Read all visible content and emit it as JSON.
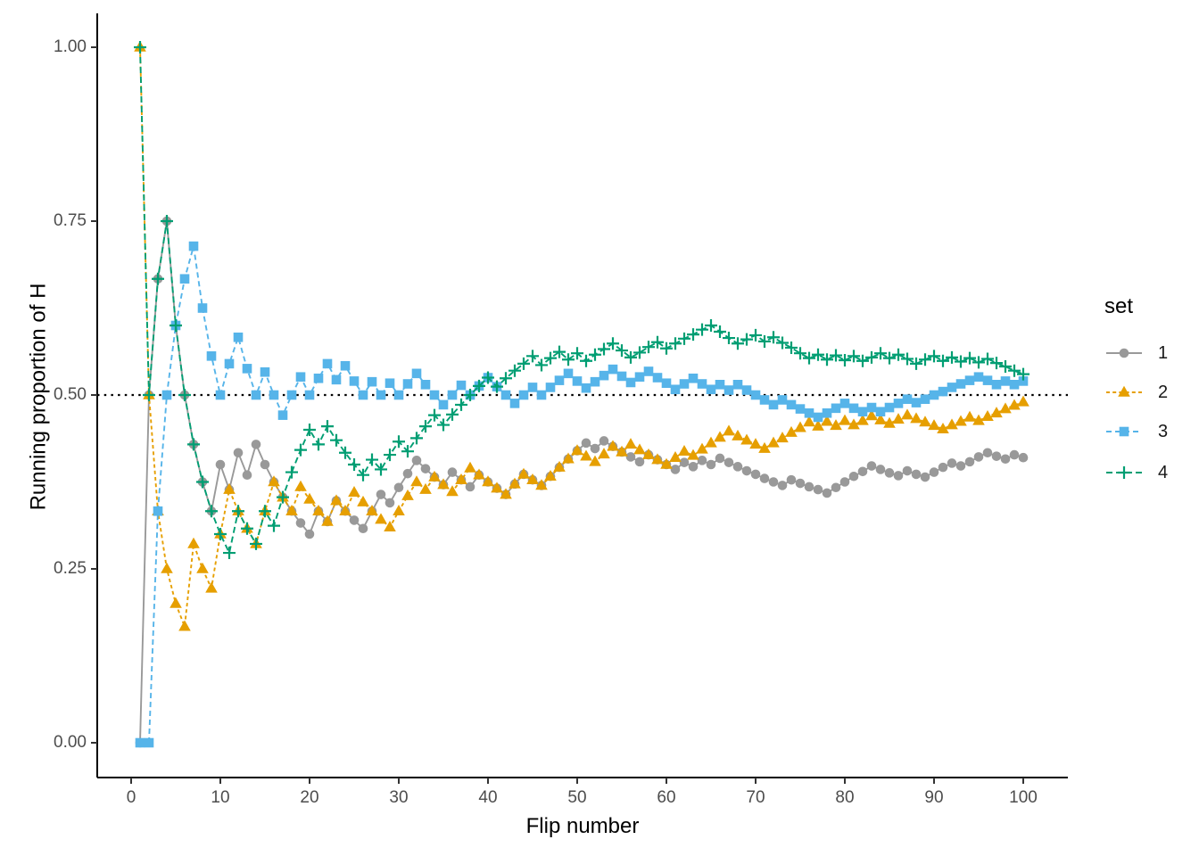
{
  "chart_data": {
    "type": "line",
    "title": "",
    "xlabel": "Flip number",
    "ylabel": "Running proportion of H",
    "x_range": [
      1,
      100
    ],
    "xlim": [
      -3.8,
      105
    ],
    "ylim": [
      -0.05,
      1.05
    ],
    "grid": false,
    "x_tick_values": [
      0,
      10,
      20,
      30,
      40,
      50,
      60,
      70,
      80,
      90,
      100
    ],
    "x_tick_labels": [
      "0",
      "10",
      "20",
      "30",
      "40",
      "50",
      "60",
      "70",
      "80",
      "90",
      "100"
    ],
    "y_tick_values": [
      0.0,
      0.25,
      0.5,
      0.75,
      1.0
    ],
    "y_tick_labels": [
      "0.00",
      "0.25",
      "0.50",
      "0.75",
      "1.00"
    ],
    "reference_line": {
      "y": 0.5,
      "style": "dotted",
      "color": "#000000"
    },
    "legend": {
      "title": "set",
      "position": "right"
    },
    "axis_color": "#000000",
    "tick_text_color": "#4d4d4d",
    "series": [
      {
        "label": "1",
        "color": "#999999",
        "marker": "circle",
        "linetype": "solid",
        "flips": "THHHTTTTTHTHTHTTTTTTHTHTTTHHTHHHTTTHTTHTTTHHTTHHHHHTHTTTTHTTTHTHTHTTTTTTTHTTTTHHHHHTTTHTTHHHTHHHTTHT",
        "values": [
          0.0,
          0.5,
          0.667,
          0.75,
          0.6,
          0.5,
          0.429,
          0.375,
          0.333,
          0.4,
          0.364,
          0.417,
          0.385,
          0.429,
          0.4,
          0.375,
          0.353,
          0.333,
          0.316,
          0.3,
          0.333,
          0.318,
          0.348,
          0.333,
          0.32,
          0.308,
          0.333,
          0.357,
          0.345,
          0.367,
          0.387,
          0.406,
          0.394,
          0.382,
          0.371,
          0.389,
          0.378,
          0.368,
          0.385,
          0.375,
          0.366,
          0.357,
          0.372,
          0.386,
          0.378,
          0.37,
          0.383,
          0.396,
          0.408,
          0.42,
          0.431,
          0.423,
          0.434,
          0.426,
          0.418,
          0.411,
          0.404,
          0.414,
          0.407,
          0.4,
          0.393,
          0.403,
          0.397,
          0.406,
          0.4,
          0.409,
          0.403,
          0.397,
          0.391,
          0.386,
          0.38,
          0.375,
          0.37,
          0.378,
          0.373,
          0.368,
          0.364,
          0.359,
          0.367,
          0.375,
          0.383,
          0.39,
          0.398,
          0.393,
          0.388,
          0.384,
          0.391,
          0.386,
          0.382,
          0.389,
          0.396,
          0.402,
          0.398,
          0.404,
          0.411,
          0.417,
          0.412,
          0.408,
          0.414,
          0.41
        ]
      },
      {
        "label": "2",
        "color": "#E69F00",
        "marker": "triangle",
        "linetype": "dashed",
        "flips": "HTTTTTHTTHHTTTHHTTHTTTHTHTTTTHHHTHTTHHTTTTHHTTHHHHTTHHTHTTTTHHTHHHHTTTTHHHHHTHTHTHHTTHHTTTTHHHTHHHHH",
        "values": [
          1.0,
          0.5,
          0.333,
          0.25,
          0.2,
          0.167,
          0.286,
          0.25,
          0.222,
          0.3,
          0.364,
          0.333,
          0.308,
          0.286,
          0.333,
          0.375,
          0.353,
          0.333,
          0.368,
          0.35,
          0.333,
          0.318,
          0.348,
          0.333,
          0.36,
          0.346,
          0.333,
          0.321,
          0.31,
          0.333,
          0.355,
          0.375,
          0.364,
          0.382,
          0.371,
          0.361,
          0.378,
          0.395,
          0.385,
          0.375,
          0.366,
          0.357,
          0.372,
          0.386,
          0.378,
          0.37,
          0.383,
          0.396,
          0.408,
          0.42,
          0.412,
          0.404,
          0.415,
          0.426,
          0.418,
          0.429,
          0.421,
          0.414,
          0.407,
          0.4,
          0.41,
          0.419,
          0.413,
          0.422,
          0.431,
          0.439,
          0.448,
          0.441,
          0.435,
          0.429,
          0.423,
          0.431,
          0.438,
          0.446,
          0.453,
          0.461,
          0.455,
          0.462,
          0.456,
          0.463,
          0.457,
          0.463,
          0.47,
          0.464,
          0.459,
          0.465,
          0.471,
          0.466,
          0.461,
          0.456,
          0.451,
          0.457,
          0.462,
          0.468,
          0.463,
          0.469,
          0.474,
          0.48,
          0.485,
          0.49
        ]
      },
      {
        "label": "3",
        "color": "#56B4E9",
        "marker": "square",
        "linetype": "dashed",
        "flips": "TTHHHHHTTTHHTTHTTHHTHHTHTTHTHTHHTTTHHTHHTTTHHTHHHTTHHHTTHHTTTHHTTHTHTTTTHTTTTHHHTTHTHHHTHHHHHHHTTHTH",
        "values": [
          0.0,
          0.0,
          0.333,
          0.5,
          0.6,
          0.667,
          0.714,
          0.625,
          0.556,
          0.5,
          0.545,
          0.583,
          0.538,
          0.5,
          0.533,
          0.5,
          0.471,
          0.5,
          0.526,
          0.5,
          0.524,
          0.545,
          0.522,
          0.542,
          0.52,
          0.5,
          0.519,
          0.5,
          0.517,
          0.5,
          0.516,
          0.531,
          0.515,
          0.5,
          0.486,
          0.5,
          0.514,
          0.5,
          0.513,
          0.525,
          0.512,
          0.5,
          0.488,
          0.5,
          0.511,
          0.5,
          0.511,
          0.521,
          0.531,
          0.52,
          0.51,
          0.519,
          0.528,
          0.537,
          0.527,
          0.518,
          0.526,
          0.534,
          0.525,
          0.517,
          0.508,
          0.516,
          0.524,
          0.516,
          0.508,
          0.515,
          0.507,
          0.515,
          0.507,
          0.5,
          0.493,
          0.486,
          0.493,
          0.486,
          0.48,
          0.474,
          0.468,
          0.474,
          0.481,
          0.488,
          0.481,
          0.476,
          0.482,
          0.476,
          0.482,
          0.488,
          0.494,
          0.489,
          0.494,
          0.5,
          0.505,
          0.511,
          0.516,
          0.521,
          0.526,
          0.521,
          0.515,
          0.52,
          0.515,
          0.52
        ]
      },
      {
        "label": "4",
        "color": "#009E73",
        "marker": "plus",
        "linetype": "dashed",
        "flips": "HTHHTTTTTTTHTTHTHHHHTHTTTTHTHHTHHHTHHHHHTHHHHTHHTHTHHHTTHHHTHHHHHTTTHHTHTTTTHTHTHTHHTHTTHHTHTHTHTTTT",
        "values": [
          1.0,
          0.5,
          0.667,
          0.75,
          0.6,
          0.5,
          0.429,
          0.375,
          0.333,
          0.3,
          0.273,
          0.333,
          0.308,
          0.286,
          0.333,
          0.312,
          0.353,
          0.389,
          0.421,
          0.45,
          0.429,
          0.455,
          0.435,
          0.417,
          0.4,
          0.385,
          0.407,
          0.393,
          0.414,
          0.433,
          0.419,
          0.438,
          0.455,
          0.471,
          0.457,
          0.472,
          0.486,
          0.5,
          0.513,
          0.525,
          0.512,
          0.524,
          0.535,
          0.545,
          0.556,
          0.543,
          0.553,
          0.562,
          0.551,
          0.56,
          0.549,
          0.558,
          0.566,
          0.574,
          0.564,
          0.554,
          0.561,
          0.569,
          0.576,
          0.567,
          0.574,
          0.581,
          0.587,
          0.594,
          0.6,
          0.591,
          0.582,
          0.574,
          0.58,
          0.586,
          0.577,
          0.583,
          0.575,
          0.568,
          0.56,
          0.553,
          0.558,
          0.551,
          0.557,
          0.55,
          0.556,
          0.549,
          0.554,
          0.56,
          0.553,
          0.558,
          0.552,
          0.545,
          0.551,
          0.556,
          0.549,
          0.554,
          0.548,
          0.553,
          0.547,
          0.552,
          0.546,
          0.541,
          0.535,
          0.53
        ]
      }
    ]
  }
}
